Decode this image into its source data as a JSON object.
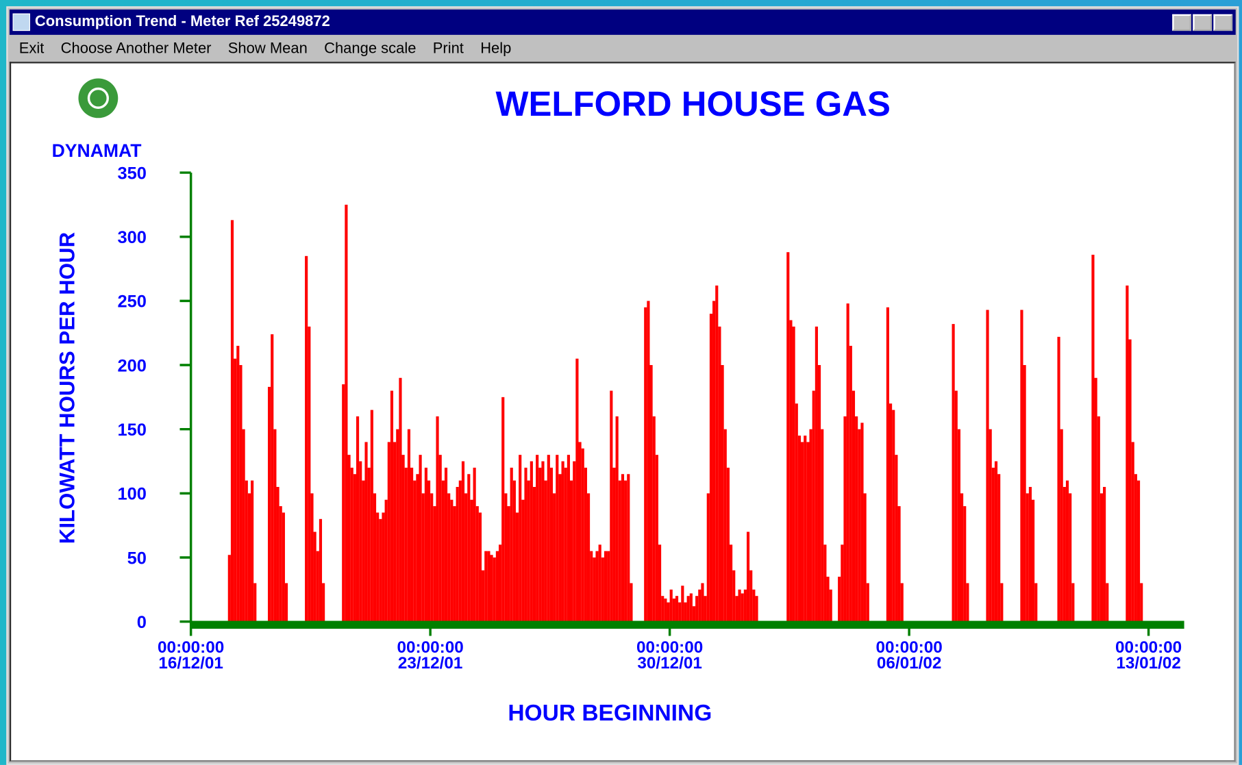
{
  "window": {
    "title": "Consumption Trend - Meter Ref 25249872",
    "menu": [
      "Exit",
      "Choose Another Meter",
      "Show Mean",
      "Change scale",
      "Print",
      "Help"
    ]
  },
  "logo": {
    "text": "DYNAMAT"
  },
  "chart_data": {
    "type": "bar",
    "title": "WELFORD HOUSE GAS",
    "xlabel": "HOUR BEGINNING",
    "ylabel": "KILOWATT HOURS PER HOUR",
    "color": "#ff0000",
    "axis_color": "#008000",
    "xlim": [
      0,
      697
    ],
    "ylim": [
      0,
      350
    ],
    "yticks": [
      0,
      50,
      100,
      150,
      200,
      250,
      300,
      350
    ],
    "xticks": [
      {
        "value": 0,
        "label": "00:00:00 16/12/01"
      },
      {
        "value": 168,
        "label": "00:00:00 23/12/01"
      },
      {
        "value": 336,
        "label": "00:00:00 30/12/01"
      },
      {
        "value": 504,
        "label": "00:00:00 06/01/02"
      },
      {
        "value": 672,
        "label": "00:00:00 13/01/02"
      }
    ],
    "x": [
      26,
      28,
      30,
      32,
      34,
      36,
      38,
      40,
      42,
      44,
      54,
      56,
      58,
      60,
      62,
      64,
      66,
      80,
      82,
      84,
      86,
      88,
      90,
      92,
      106,
      108,
      110,
      112,
      114,
      116,
      118,
      120,
      122,
      124,
      126,
      128,
      130,
      132,
      134,
      136,
      138,
      140,
      142,
      144,
      146,
      148,
      150,
      152,
      154,
      156,
      158,
      160,
      162,
      164,
      166,
      168,
      170,
      172,
      174,
      176,
      178,
      180,
      182,
      184,
      186,
      188,
      190,
      192,
      194,
      196,
      198,
      200,
      202,
      204,
      206,
      208,
      210,
      212,
      214,
      216,
      218,
      220,
      222,
      224,
      226,
      228,
      230,
      232,
      234,
      236,
      238,
      240,
      242,
      244,
      246,
      248,
      250,
      252,
      254,
      256,
      258,
      260,
      262,
      264,
      266,
      268,
      270,
      272,
      274,
      276,
      278,
      280,
      282,
      284,
      286,
      288,
      290,
      292,
      294,
      296,
      298,
      300,
      302,
      304,
      306,
      308,
      318,
      320,
      322,
      324,
      326,
      328,
      330,
      332,
      334,
      336,
      338,
      340,
      342,
      344,
      346,
      348,
      350,
      352,
      354,
      356,
      358,
      360,
      362,
      364,
      366,
      368,
      370,
      372,
      374,
      376,
      378,
      380,
      382,
      384,
      386,
      388,
      390,
      392,
      394,
      396,
      418,
      420,
      422,
      424,
      426,
      428,
      430,
      432,
      434,
      436,
      438,
      440,
      442,
      444,
      446,
      448,
      454,
      456,
      458,
      460,
      462,
      464,
      466,
      468,
      470,
      472,
      474,
      488,
      490,
      492,
      494,
      496,
      498,
      534,
      536,
      538,
      540,
      542,
      544,
      558,
      560,
      562,
      564,
      566,
      568,
      582,
      584,
      586,
      588,
      590,
      592,
      608,
      610,
      612,
      614,
      616,
      618,
      632,
      634,
      636,
      638,
      640,
      642,
      656,
      658,
      660,
      662,
      664,
      666
    ],
    "values": [
      52,
      313,
      205,
      215,
      200,
      150,
      110,
      100,
      110,
      30,
      183,
      224,
      150,
      105,
      90,
      85,
      30,
      285,
      230,
      100,
      70,
      55,
      80,
      30,
      185,
      325,
      130,
      120,
      115,
      160,
      125,
      110,
      140,
      120,
      165,
      100,
      85,
      80,
      85,
      95,
      140,
      180,
      140,
      150,
      190,
      130,
      120,
      150,
      120,
      110,
      115,
      130,
      100,
      120,
      110,
      100,
      90,
      160,
      130,
      110,
      120,
      100,
      95,
      90,
      105,
      110,
      125,
      100,
      115,
      95,
      120,
      90,
      85,
      40,
      55,
      55,
      52,
      50,
      55,
      60,
      175,
      100,
      90,
      120,
      110,
      85,
      130,
      95,
      120,
      110,
      125,
      105,
      130,
      120,
      125,
      110,
      130,
      120,
      100,
      130,
      115,
      125,
      120,
      130,
      110,
      125,
      205,
      140,
      135,
      120,
      100,
      55,
      50,
      55,
      60,
      50,
      55,
      55,
      180,
      120,
      160,
      110,
      115,
      110,
      115,
      30,
      245,
      250,
      200,
      160,
      130,
      60,
      20,
      18,
      15,
      25,
      18,
      20,
      15,
      28,
      15,
      20,
      22,
      12,
      20,
      25,
      30,
      20,
      100,
      240,
      250,
      262,
      230,
      200,
      150,
      120,
      60,
      40,
      20,
      25,
      22,
      25,
      70,
      40,
      25,
      20,
      288,
      235,
      230,
      170,
      145,
      140,
      145,
      140,
      150,
      180,
      230,
      200,
      150,
      60,
      35,
      25,
      35,
      60,
      160,
      248,
      215,
      180,
      160,
      150,
      155,
      100,
      30,
      245,
      170,
      165,
      130,
      90,
      30,
      232,
      180,
      150,
      100,
      90,
      30,
      243,
      150,
      120,
      125,
      115,
      30,
      243,
      200,
      100,
      105,
      95,
      30,
      222,
      150,
      105,
      110,
      100,
      30,
      286,
      190,
      160,
      100,
      105,
      30,
      262,
      220,
      140,
      115,
      110,
      30
    ]
  }
}
